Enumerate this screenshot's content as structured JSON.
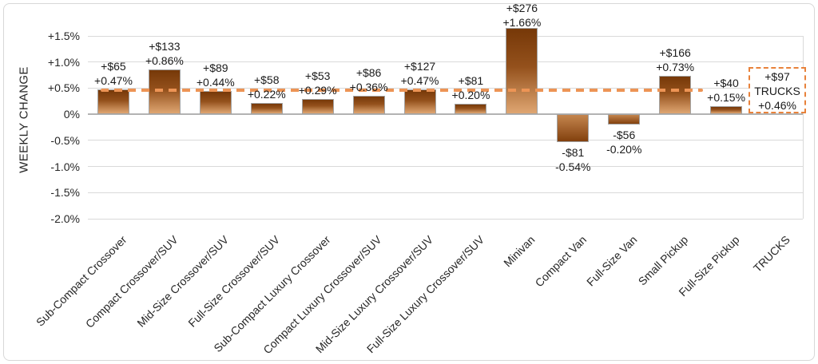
{
  "chart_data": {
    "type": "bar",
    "title": "",
    "ylabel": "WEEKLY CHANGE",
    "ylim": [
      -2.0,
      1.5
    ],
    "ytick_step": 0.5,
    "yticks": [
      {
        "value": 1.5,
        "label": "+1.5%"
      },
      {
        "value": 1.0,
        "label": "+1.0%"
      },
      {
        "value": 0.5,
        "label": "+0.5%"
      },
      {
        "value": 0.0,
        "label": "0%"
      },
      {
        "value": -0.5,
        "label": "-0.5%"
      },
      {
        "value": -1.0,
        "label": "-1.0%"
      },
      {
        "value": -1.5,
        "label": "-1.5%"
      },
      {
        "value": -2.0,
        "label": "-2.0%"
      }
    ],
    "grid": true,
    "legend": null,
    "categories": [
      "Sub-Compact Crossover",
      "Compact Crossover/SUV",
      "Mid-Size Crossover/SUV",
      "Full-Size Crossover/SUV",
      "Sub-Compact Luxury Crossover",
      "Compact Luxury Crossover/SUV",
      "Mid-Size Luxury Crossover/SUV",
      "Full-Size Luxury Crossover/SUV",
      "Minivan",
      "Compact Van",
      "Full-Size Van",
      "Small Pickup",
      "Full-Size Pickup",
      "TRUCKS"
    ],
    "points": [
      {
        "slug": "sub-compact-crossover",
        "category": "Sub-Compact Crossover",
        "dollar": "+$65",
        "percent": "+0.47%",
        "value": 0.47
      },
      {
        "slug": "compact-crossover-suv",
        "category": "Compact Crossover/SUV",
        "dollar": "+$133",
        "percent": "+0.86%",
        "value": 0.86
      },
      {
        "slug": "mid-size-crossover-suv",
        "category": "Mid-Size Crossover/SUV",
        "dollar": "+$89",
        "percent": "+0.44%",
        "value": 0.44
      },
      {
        "slug": "full-size-crossover-suv",
        "category": "Full-Size Crossover/SUV",
        "dollar": "+$58",
        "percent": "+0.22%",
        "value": 0.22
      },
      {
        "slug": "sub-compact-luxury-crossover",
        "category": "Sub-Compact Luxury Crossover",
        "dollar": "+$53",
        "percent": "+0.29%",
        "value": 0.29
      },
      {
        "slug": "compact-luxury-crossover-suv",
        "category": "Compact Luxury Crossover/SUV",
        "dollar": "+$86",
        "percent": "+0.36%",
        "value": 0.36
      },
      {
        "slug": "mid-size-luxury-crossover-suv",
        "category": "Mid-Size Luxury Crossover/SUV",
        "dollar": "+$127",
        "percent": "+0.47%",
        "value": 0.47
      },
      {
        "slug": "full-size-luxury-crossover-suv",
        "category": "Full-Size Luxury Crossover/SUV",
        "dollar": "+$81",
        "percent": "+0.20%",
        "value": 0.2
      },
      {
        "slug": "minivan",
        "category": "Minivan",
        "dollar": "+$276",
        "percent": "+1.66%",
        "value": 1.66
      },
      {
        "slug": "compact-van",
        "category": "Compact Van",
        "dollar": "-$81",
        "percent": "-0.54%",
        "value": -0.54
      },
      {
        "slug": "full-size-van",
        "category": "Full-Size Van",
        "dollar": "-$56",
        "percent": "-0.20%",
        "value": -0.2
      },
      {
        "slug": "small-pickup",
        "category": "Small Pickup",
        "dollar": "+$166",
        "percent": "+0.73%",
        "value": 0.73
      },
      {
        "slug": "full-size-pickup",
        "category": "Full-Size Pickup",
        "dollar": "+$40",
        "percent": "+0.15%",
        "value": 0.15
      },
      {
        "slug": "trucks",
        "category": "TRUCKS",
        "dollar": "+$97",
        "percent": "+0.46%",
        "value": 0.46,
        "annotation": true
      }
    ],
    "reference_line": {
      "value": 0.46,
      "style": "dashed",
      "meaning": "TRUCKS average weekly change"
    },
    "annotation_box": {
      "category": "TRUCKS",
      "lines": [
        "+$97",
        "TRUCKS",
        "+0.46%"
      ]
    }
  },
  "colors": {
    "bar_tip_dark": "#763808",
    "bar_mid": "#94511c",
    "bar_zero_light": "#dfa672",
    "bar_neg_top": "#c4854e",
    "bar_neg_bottom": "#82400d",
    "bar_border": "#a3a3a3",
    "grid_line": "#d9d9d9",
    "zero_line": "#b3b3b3",
    "reference_line": "#ed9455",
    "annotation_border": "#e8823b",
    "text": "#1a1a1a",
    "frame_border": "#d8d8d8"
  }
}
